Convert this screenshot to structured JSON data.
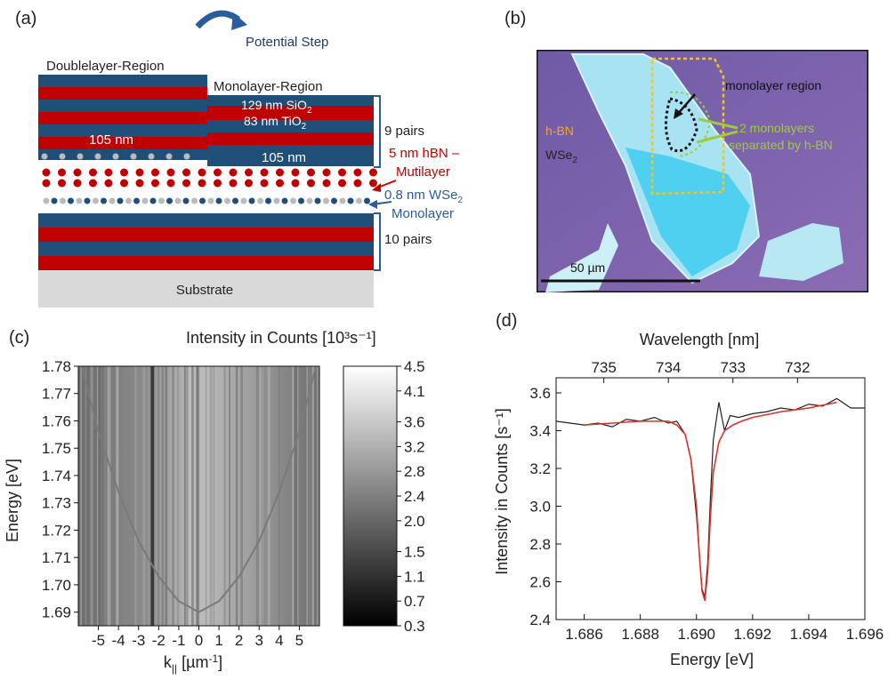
{
  "panels": {
    "a": {
      "label": "(a)",
      "potential_step": "Potential Step",
      "doublelayer_region": "Doublelayer-Region",
      "monolayer_region": "Monolayer-Region",
      "sio2": "129 nm SiO",
      "sio2_sub": "2",
      "tio2": "83 nm TiO",
      "tio2_sub": "2",
      "thickness_left": "105 nm",
      "thickness_right": "105 nm",
      "pairs_top": "9 pairs",
      "hbn_line1": "5 nm hBN –",
      "hbn_line2": "Mutilayer",
      "wse2_line1_pre": "0.8 nm WSe",
      "wse2_sub": "2",
      "wse2_line1_post": "-",
      "wse2_line2": "Monolayer",
      "pairs_bottom": "10 pairs",
      "substrate": "Substrate",
      "colors": {
        "blue": "#1f4e79",
        "red": "#c00000",
        "substrate": "#d9d9d9",
        "hbn": "#c00000",
        "wse2": "#1f4e79"
      }
    },
    "b": {
      "label": "(b)",
      "hbn": "h-BN",
      "wse2_pre": "WSe",
      "wse2_sub": "2",
      "monolayer_region": "monolayer region",
      "two_monolayers_line1": "2 monolayers",
      "two_monolayers_line2": "separated by h-BN",
      "scale_bar": "50 µm",
      "colors": {
        "background": "#7a62a8",
        "flake": "#8fdcf0",
        "hbn_text": "#f5a623",
        "green_text": "#9ccc3c"
      }
    },
    "c": {
      "label": "(c)",
      "colorbar_title": "Intensity in Counts [10³s⁻¹]",
      "ylabel": "Energy [eV]",
      "xlabel": "k|| [µm⁻¹]"
    },
    "d": {
      "label": "(d)",
      "top_axis_label": "Wavelength [nm]",
      "ylabel": "Intensity in Counts [s⁻¹]",
      "xlabel": "Energy [eV]"
    }
  },
  "chart_data": [
    {
      "type": "heatmap",
      "panel": "c",
      "x_ticks": [
        "-5",
        "-4",
        "-3",
        "-2",
        "-1",
        "0",
        "1",
        "2",
        "3",
        "4",
        "5"
      ],
      "y_ticks": [
        "1.78",
        "1.77",
        "1.76",
        "1.75",
        "1.74",
        "1.73",
        "1.72",
        "1.71",
        "1.70",
        "1.69"
      ],
      "xlim": [
        -6,
        6
      ],
      "ylim": [
        1.685,
        1.78
      ],
      "colorbar_ticks": [
        "4.5",
        "4.1",
        "3.6",
        "3.2",
        "2.8",
        "2.4",
        "2.0",
        "1.5",
        "1.1",
        "0.7",
        "0.3"
      ],
      "colorbar_range": [
        0.3,
        4.5
      ],
      "dispersion_min_energy": 1.69,
      "dispersion_min_k": 0,
      "dispersion_points": [
        [
          -6,
          1.785
        ],
        [
          -5,
          1.756
        ],
        [
          -4,
          1.734
        ],
        [
          -3,
          1.716
        ],
        [
          -2,
          1.703
        ],
        [
          -1,
          1.694
        ],
        [
          0,
          1.69
        ],
        [
          1,
          1.694
        ],
        [
          2,
          1.703
        ],
        [
          3,
          1.716
        ],
        [
          4,
          1.734
        ],
        [
          5,
          1.756
        ],
        [
          6,
          1.785
        ]
      ]
    },
    {
      "type": "line",
      "panel": "d",
      "x_ticks": [
        "1.686",
        "1.688",
        "1.690",
        "1.692",
        "1.694",
        "1.696"
      ],
      "xlim": [
        1.685,
        1.696
      ],
      "y_ticks": [
        "2.4",
        "2.6",
        "2.8",
        "3.0",
        "3.2",
        "3.4",
        "3.6"
      ],
      "ylim": [
        2.4,
        3.68
      ],
      "top_ticks": [
        "735",
        "734",
        "733",
        "732"
      ],
      "top_tick_energies": [
        1.6867,
        1.689,
        1.6913,
        1.6936
      ],
      "series": [
        {
          "color": "#222222",
          "x": [
            1.685,
            1.6855,
            1.686,
            1.6865,
            1.687,
            1.6875,
            1.688,
            1.6885,
            1.689,
            1.6893,
            1.6896,
            1.6898,
            1.69,
            1.6901,
            1.6902,
            1.6903,
            1.6904,
            1.6905,
            1.6906,
            1.6908,
            1.691,
            1.6912,
            1.6915,
            1.692,
            1.6925,
            1.693,
            1.6935,
            1.694,
            1.6945,
            1.695,
            1.6955,
            1.696
          ],
          "y": [
            3.45,
            3.44,
            3.43,
            3.44,
            3.42,
            3.46,
            3.45,
            3.47,
            3.44,
            3.45,
            3.38,
            3.25,
            2.95,
            2.75,
            2.56,
            2.52,
            2.7,
            3.05,
            3.35,
            3.55,
            3.4,
            3.48,
            3.47,
            3.49,
            3.5,
            3.52,
            3.51,
            3.54,
            3.53,
            3.57,
            3.52,
            3.52
          ]
        },
        {
          "color": "#e0302a",
          "x": [
            1.686,
            1.687,
            1.688,
            1.6885,
            1.689,
            1.6893,
            1.6896,
            1.6898,
            1.69,
            1.6901,
            1.6902,
            1.6903,
            1.6904,
            1.6905,
            1.6906,
            1.6908,
            1.691,
            1.6913,
            1.6916,
            1.692,
            1.693,
            1.694,
            1.695
          ],
          "y": [
            3.43,
            3.44,
            3.45,
            3.45,
            3.45,
            3.43,
            3.38,
            3.25,
            3.0,
            2.75,
            2.55,
            2.5,
            2.65,
            2.95,
            3.18,
            3.34,
            3.4,
            3.43,
            3.45,
            3.47,
            3.5,
            3.52,
            3.55
          ]
        }
      ]
    }
  ]
}
